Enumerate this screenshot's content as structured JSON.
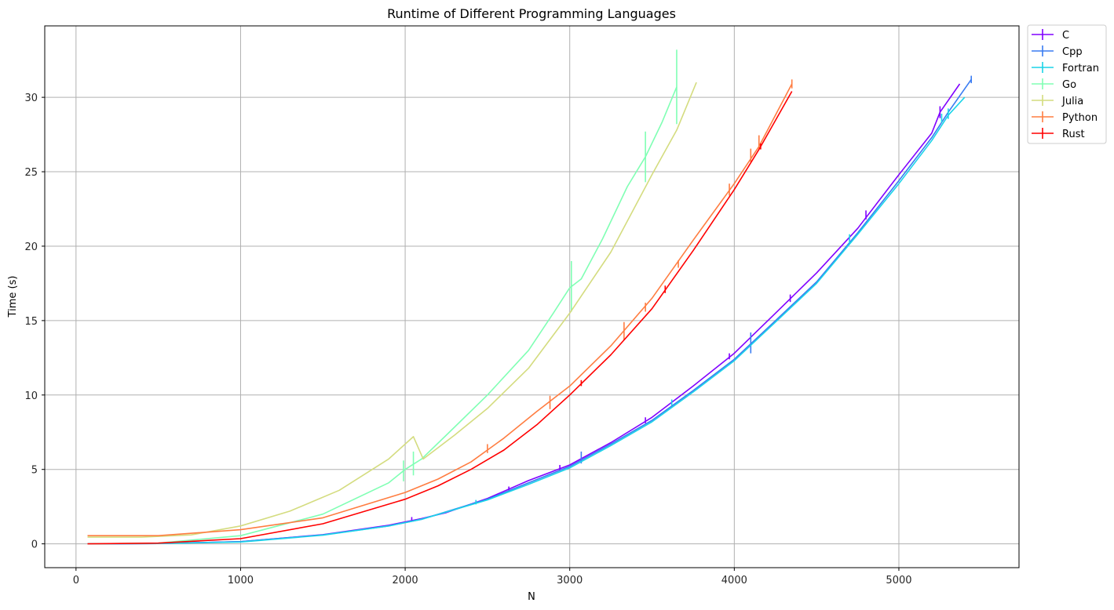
{
  "chart_data": {
    "type": "line",
    "title": "Runtime of Different Programming Languages",
    "xlabel": "N",
    "ylabel": "Time (s)",
    "xlim": [
      -190,
      5730
    ],
    "ylim": [
      -1.6,
      34.8
    ],
    "xticks": [
      0,
      1000,
      2000,
      3000,
      4000,
      5000
    ],
    "yticks": [
      0,
      5,
      10,
      15,
      20,
      25,
      30
    ],
    "grid": true,
    "legend": "outside-top-right",
    "series": [
      {
        "name": "C",
        "color": "#8000ff",
        "points": [
          [
            70,
            0
          ],
          [
            500,
            0.02
          ],
          [
            1000,
            0.15
          ],
          [
            1500,
            0.62
          ],
          [
            1900,
            1.25
          ],
          [
            2100,
            1.7
          ],
          [
            2250,
            2.1
          ],
          [
            2500,
            3.05
          ],
          [
            2750,
            4.25
          ],
          [
            3000,
            5.3
          ],
          [
            3250,
            6.8
          ],
          [
            3500,
            8.5
          ],
          [
            3750,
            10.6
          ],
          [
            4000,
            12.8
          ],
          [
            4250,
            15.5
          ],
          [
            4500,
            18.2
          ],
          [
            4750,
            21.2
          ],
          [
            5000,
            24.8
          ],
          [
            5200,
            27.6
          ],
          [
            5250,
            29.0
          ],
          [
            5370,
            30.9
          ]
        ],
        "errorbars": [
          [
            2040,
            1.65,
            0.15
          ],
          [
            2630,
            3.7,
            0.15
          ],
          [
            2940,
            5.1,
            0.2
          ],
          [
            3460,
            8.3,
            0.2
          ],
          [
            3970,
            12.6,
            0.2
          ],
          [
            4340,
            16.5,
            0.25
          ],
          [
            4800,
            22.1,
            0.3
          ],
          [
            5250,
            29.0,
            0.4
          ]
        ]
      },
      {
        "name": "Cpp",
        "color": "#3a7cf2",
        "points": [
          [
            70,
            0
          ],
          [
            500,
            0.02
          ],
          [
            1000,
            0.15
          ],
          [
            1500,
            0.6
          ],
          [
            1900,
            1.2
          ],
          [
            2100,
            1.65
          ],
          [
            2500,
            3.0
          ],
          [
            2750,
            4.1
          ],
          [
            3000,
            5.2
          ],
          [
            3250,
            6.7
          ],
          [
            3500,
            8.3
          ],
          [
            3750,
            10.3
          ],
          [
            4000,
            12.4
          ],
          [
            4250,
            15.0
          ],
          [
            4500,
            17.6
          ],
          [
            4750,
            20.9
          ],
          [
            5000,
            24.4
          ],
          [
            5200,
            27.3
          ],
          [
            5300,
            29.0
          ],
          [
            5440,
            31.2
          ]
        ],
        "errorbars": [
          [
            3070,
            5.8,
            0.4
          ],
          [
            4100,
            13.5,
            0.7
          ],
          [
            5440,
            31.2,
            0.25
          ]
        ]
      },
      {
        "name": "Fortran",
        "color": "#1ad4e8",
        "points": [
          [
            70,
            0
          ],
          [
            500,
            0.02
          ],
          [
            1000,
            0.12
          ],
          [
            1500,
            0.58
          ],
          [
            1900,
            1.2
          ],
          [
            2100,
            1.65
          ],
          [
            2500,
            2.95
          ],
          [
            2750,
            4.0
          ],
          [
            3000,
            5.1
          ],
          [
            3250,
            6.6
          ],
          [
            3500,
            8.2
          ],
          [
            3750,
            10.2
          ],
          [
            4000,
            12.3
          ],
          [
            4250,
            14.9
          ],
          [
            4500,
            17.5
          ],
          [
            4750,
            20.8
          ],
          [
            5000,
            24.2
          ],
          [
            5200,
            27.1
          ],
          [
            5300,
            28.8
          ],
          [
            5400,
            30.0
          ]
        ],
        "errorbars": [
          [
            2430,
            2.8,
            0.15
          ],
          [
            3620,
            9.5,
            0.2
          ],
          [
            4700,
            20.5,
            0.3
          ],
          [
            5260,
            28.6,
            0.3
          ],
          [
            5300,
            28.9,
            0.35
          ]
        ]
      },
      {
        "name": "Go",
        "color": "#80ffb4",
        "points": [
          [
            70,
            0
          ],
          [
            500,
            0.05
          ],
          [
            1000,
            0.55
          ],
          [
            1500,
            2.0
          ],
          [
            1900,
            4.1
          ],
          [
            2000,
            5.0
          ],
          [
            2100,
            5.7
          ],
          [
            2250,
            7.3
          ],
          [
            2500,
            10.0
          ],
          [
            2750,
            13.0
          ],
          [
            2900,
            15.5
          ],
          [
            3000,
            17.2
          ],
          [
            3070,
            17.8
          ],
          [
            3200,
            20.5
          ],
          [
            3350,
            24.0
          ],
          [
            3460,
            26.0
          ],
          [
            3560,
            28.3
          ],
          [
            3650,
            30.7
          ]
        ],
        "errorbars": [
          [
            1990,
            4.9,
            0.7
          ],
          [
            2050,
            5.4,
            0.8
          ],
          [
            3010,
            17.3,
            1.7
          ],
          [
            3460,
            26.0,
            1.7
          ],
          [
            3650,
            30.7,
            2.5
          ]
        ]
      },
      {
        "name": "Julia",
        "color": "#d4dc7f",
        "points": [
          [
            70,
            0.45
          ],
          [
            400,
            0.45
          ],
          [
            700,
            0.6
          ],
          [
            1000,
            1.2
          ],
          [
            1300,
            2.2
          ],
          [
            1600,
            3.6
          ],
          [
            1900,
            5.7
          ],
          [
            2050,
            7.2
          ],
          [
            2110,
            5.7
          ],
          [
            2300,
            7.3
          ],
          [
            2500,
            9.1
          ],
          [
            2750,
            11.8
          ],
          [
            3000,
            15.5
          ],
          [
            3250,
            19.6
          ],
          [
            3500,
            24.8
          ],
          [
            3650,
            27.8
          ],
          [
            3770,
            31.0
          ]
        ],
        "errorbars": []
      },
      {
        "name": "Python",
        "color": "#ff7d41",
        "points": [
          [
            70,
            0.55
          ],
          [
            500,
            0.55
          ],
          [
            1000,
            0.95
          ],
          [
            1500,
            1.75
          ],
          [
            2000,
            3.45
          ],
          [
            2200,
            4.35
          ],
          [
            2400,
            5.5
          ],
          [
            2600,
            7.1
          ],
          [
            2800,
            8.9
          ],
          [
            3000,
            10.6
          ],
          [
            3250,
            13.3
          ],
          [
            3500,
            16.5
          ],
          [
            3750,
            20.4
          ],
          [
            4000,
            24.2
          ],
          [
            4150,
            26.7
          ],
          [
            4350,
            30.9
          ]
        ],
        "errorbars": [
          [
            2500,
            6.4,
            0.3
          ],
          [
            2880,
            9.5,
            0.45
          ],
          [
            3330,
            14.3,
            0.6
          ],
          [
            3460,
            15.9,
            0.3
          ],
          [
            3660,
            18.8,
            0.25
          ],
          [
            3970,
            23.8,
            0.4
          ],
          [
            4100,
            26.1,
            0.45
          ],
          [
            4150,
            27.0,
            0.45
          ],
          [
            4350,
            30.9,
            0.3
          ]
        ]
      },
      {
        "name": "Rust",
        "color": "#ff0000",
        "points": [
          [
            70,
            0
          ],
          [
            500,
            0.05
          ],
          [
            1000,
            0.35
          ],
          [
            1500,
            1.35
          ],
          [
            2000,
            3.0
          ],
          [
            2200,
            3.9
          ],
          [
            2400,
            5.0
          ],
          [
            2600,
            6.3
          ],
          [
            2800,
            8.0
          ],
          [
            3000,
            10.0
          ],
          [
            3250,
            12.7
          ],
          [
            3500,
            15.8
          ],
          [
            3750,
            19.7
          ],
          [
            4000,
            23.8
          ],
          [
            4150,
            26.5
          ],
          [
            4350,
            30.4
          ]
        ],
        "errorbars": [
          [
            3070,
            10.8,
            0.2
          ],
          [
            3580,
            17.1,
            0.25
          ],
          [
            4160,
            26.7,
            0.2
          ]
        ]
      }
    ]
  }
}
